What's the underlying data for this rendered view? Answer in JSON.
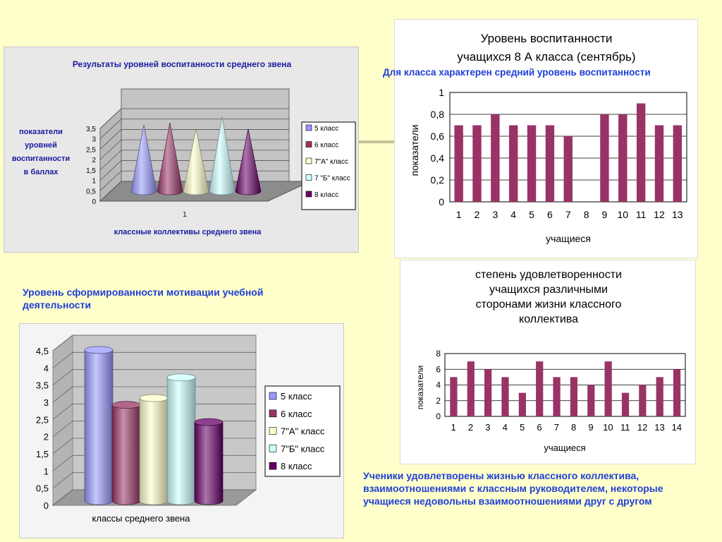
{
  "captions": {
    "top": "Для класса характерен средний уровень воспитанности",
    "middle": "Уровень сформированности мотивации учебной деятельности",
    "bottom": "Ученики удовлетворены жизнью классного коллектива, взаимоотношениями с классным руководителем, некоторые учащиеся недовольны взаимоотношениями друг с другом"
  },
  "colors": {
    "page_bg": "#ffffcc",
    "caption": "#1f3fd6",
    "cone_title": "#1a1aa0",
    "bar": "#993366",
    "class5": "#9999ff",
    "class6": "#993366",
    "class7a": "#ffffcc",
    "class7b": "#ccffff",
    "class8": "#660066"
  },
  "chart_data": [
    {
      "id": "cones",
      "type": "bar",
      "title": "Результаты уровней воспитанности среднего звена",
      "ylabel_lines": [
        "показатели",
        "уровней",
        "воспитанности",
        "в баллах"
      ],
      "xlabel": "классные коллективы среднего звена",
      "categories": [
        "1"
      ],
      "ylim": [
        0,
        3.5
      ],
      "yticks": [
        "0",
        "0,5",
        "1",
        "1,5",
        "2",
        "2,5",
        "3",
        "3,5"
      ],
      "legend_position": "right",
      "series": [
        {
          "name": "5 класс",
          "values": [
            3.2
          ],
          "color": "#9999ff"
        },
        {
          "name": "6 класс",
          "values": [
            3.3
          ],
          "color": "#993366"
        },
        {
          "name": "7\"А\" класс",
          "values": [
            3.0
          ],
          "color": "#ffffcc"
        },
        {
          "name": "7 \"Б\" класс",
          "values": [
            3.6
          ],
          "color": "#ccffff"
        },
        {
          "name": "8 класс",
          "values": [
            3.0
          ],
          "color": "#660066"
        }
      ]
    },
    {
      "id": "bars8a",
      "type": "bar",
      "title_lines": [
        "Уровень воспитанности",
        "учащихся 8 А класса (сентябрь)"
      ],
      "xlabel": "учащиеся",
      "ylabel": "показатели",
      "categories": [
        "1",
        "2",
        "3",
        "4",
        "5",
        "6",
        "7",
        "8",
        "9",
        "10",
        "11",
        "12",
        "13"
      ],
      "values": [
        0.7,
        0.7,
        0.8,
        0.7,
        0.7,
        0.7,
        0.6,
        0,
        0.8,
        0.8,
        0.9,
        0.7,
        0.7
      ],
      "ylim": [
        0,
        1
      ],
      "yticks": [
        "0",
        "0,2",
        "0,4",
        "0,6",
        "0,8",
        "1"
      ],
      "grid": true
    },
    {
      "id": "cylinders",
      "type": "bar",
      "xlabel": "классы среднего звена",
      "ylim": [
        0,
        4.5
      ],
      "yticks": [
        "0",
        "0,5",
        "1",
        "1,5",
        "2",
        "2,5",
        "3",
        "3,5",
        "4",
        "4,5"
      ],
      "legend_position": "right",
      "series": [
        {
          "name": "5 класс",
          "values": [
            4.4
          ],
          "color": "#9999ff"
        },
        {
          "name": "6 класс",
          "values": [
            2.8
          ],
          "color": "#993366"
        },
        {
          "name": "7\"А\" класс",
          "values": [
            3.0
          ],
          "color": "#ffffcc"
        },
        {
          "name": "7\"Б\" класс",
          "values": [
            3.6
          ],
          "color": "#ccffff"
        },
        {
          "name": "8 класс",
          "values": [
            2.3
          ],
          "color": "#660066"
        }
      ]
    },
    {
      "id": "satisfaction",
      "type": "bar",
      "title_lines": [
        "степень удовлетворенности",
        "учащихся различными",
        "сторонами жизни классного",
        "коллектива"
      ],
      "xlabel": "учащиеся",
      "ylabel": "показатели",
      "categories": [
        "1",
        "2",
        "3",
        "4",
        "5",
        "6",
        "7",
        "8",
        "9",
        "10",
        "11",
        "12",
        "13",
        "14"
      ],
      "values": [
        5,
        7,
        6,
        5,
        3,
        7,
        5,
        5,
        4,
        7,
        3,
        4,
        5,
        6
      ],
      "ylim": [
        0,
        8
      ],
      "yticks": [
        "0",
        "2",
        "4",
        "6",
        "8"
      ],
      "grid": true
    }
  ]
}
